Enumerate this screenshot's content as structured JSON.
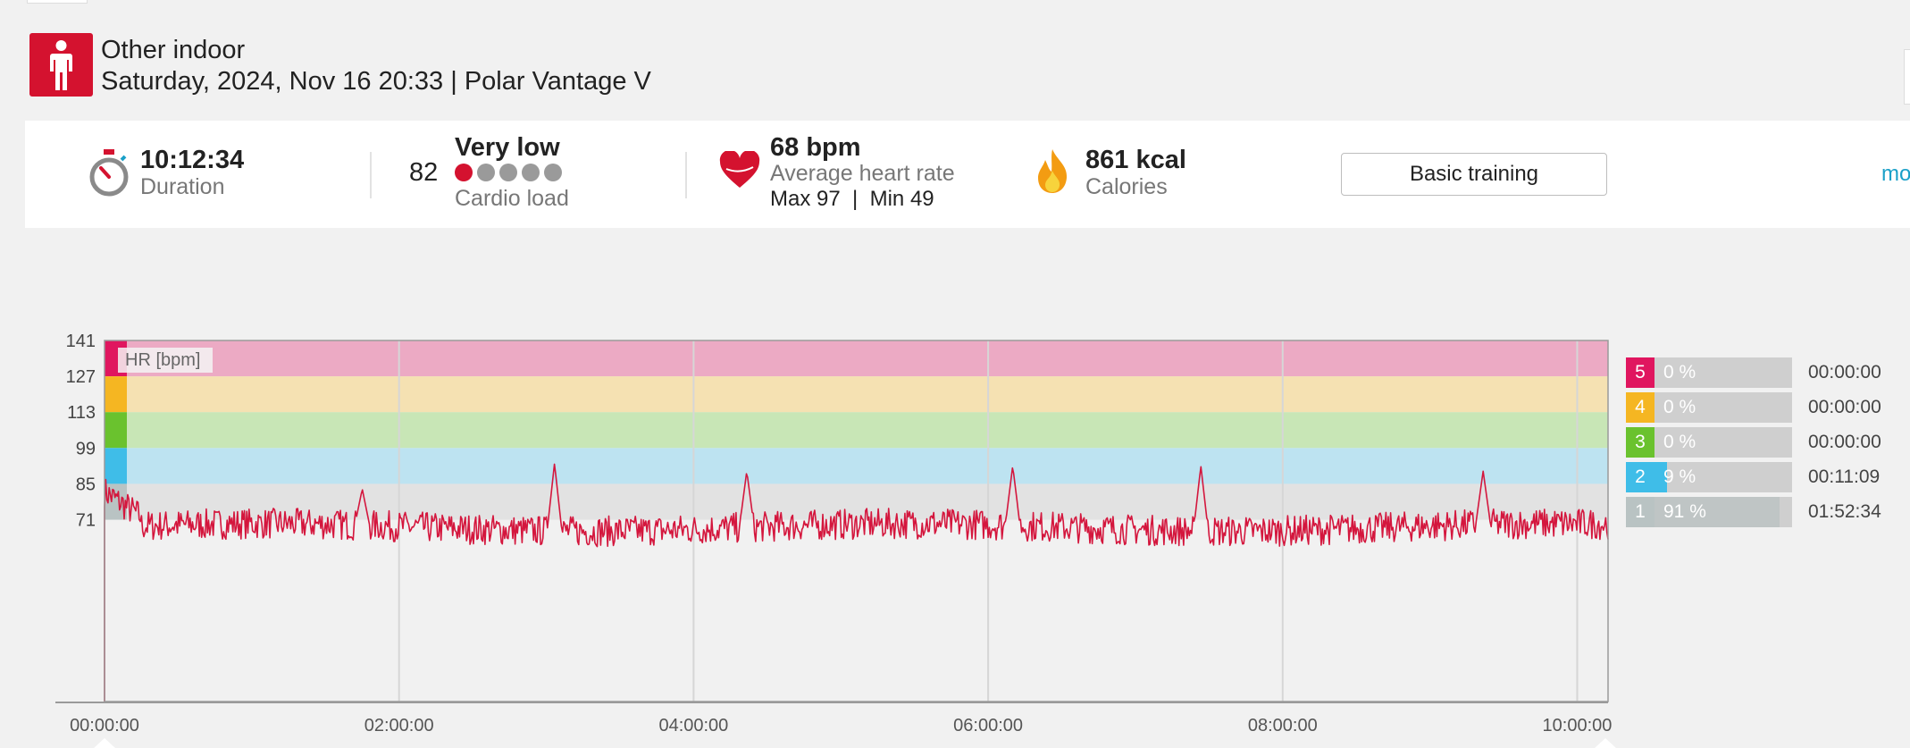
{
  "activity": {
    "sport": "Other indoor",
    "date_device": "Saturday, 2024, Nov 16 20:33 | Polar Vantage V"
  },
  "summary": {
    "duration": {
      "value": "10:12:34",
      "label": "Duration"
    },
    "cardio": {
      "score": "82",
      "level": "Very low",
      "label": "Cardio load",
      "dots_filled": 1,
      "dots_total": 5
    },
    "heart_rate": {
      "value": "68 bpm",
      "label": "Average heart rate",
      "maxmin": "Max 97  |  Min 49"
    },
    "calories": {
      "value": "861 kcal",
      "label": "Calories"
    },
    "benefit_button": "Basic training",
    "more_link": "mo"
  },
  "colors": {
    "brand": "#d4122f",
    "zone5": "#e0165f",
    "zone4": "#f5b622",
    "zone3": "#6ac22e",
    "zone2": "#3fbde8",
    "zone1": "#b9c3c3",
    "hr_line": "#d4163d",
    "link": "#1aa0c8"
  },
  "icons": {
    "sport": "person-icon",
    "duration": "stopwatch-icon",
    "heart": "heart-icon",
    "calories": "flame-icon"
  },
  "chart_data": {
    "type": "line",
    "series_label": "HR [bpm]",
    "y_ticks": [
      141,
      127,
      113,
      99,
      85,
      71
    ],
    "y_range": [
      0,
      141
    ],
    "x_ticks": [
      "00:00:00",
      "02:00:00",
      "04:00:00",
      "06:00:00",
      "08:00:00",
      "10:00:00"
    ],
    "x_range_s": [
      0,
      36754
    ],
    "zones_bpm": [
      {
        "zone": 5,
        "from": 127,
        "to": 141
      },
      {
        "zone": 4,
        "from": 113,
        "to": 127
      },
      {
        "zone": 3,
        "from": 99,
        "to": 113
      },
      {
        "zone": 2,
        "from": 85,
        "to": 99
      },
      {
        "zone": 1,
        "from": 71,
        "to": 85
      }
    ],
    "hr_stats": {
      "avg": 68,
      "max": 97,
      "min": 49
    },
    "spikes": [
      {
        "t_s": 6300,
        "bpm": 83
      },
      {
        "t_s": 11000,
        "bpm": 93
      },
      {
        "t_s": 15700,
        "bpm": 90
      },
      {
        "t_s": 22200,
        "bpm": 92
      },
      {
        "t_s": 26800,
        "bpm": 92
      },
      {
        "t_s": 33700,
        "bpm": 90
      }
    ],
    "grid": true
  },
  "zones": [
    {
      "num": "5",
      "pct": "0 %",
      "fraction": 0.0,
      "time": "00:00:00"
    },
    {
      "num": "4",
      "pct": "0 %",
      "fraction": 0.0,
      "time": "00:00:00"
    },
    {
      "num": "3",
      "pct": "0 %",
      "fraction": 0.0,
      "time": "00:00:00"
    },
    {
      "num": "2",
      "pct": "9 %",
      "fraction": 0.09,
      "time": "00:11:09"
    },
    {
      "num": "1",
      "pct": "91 %",
      "fraction": 0.91,
      "time": "01:52:34"
    }
  ]
}
